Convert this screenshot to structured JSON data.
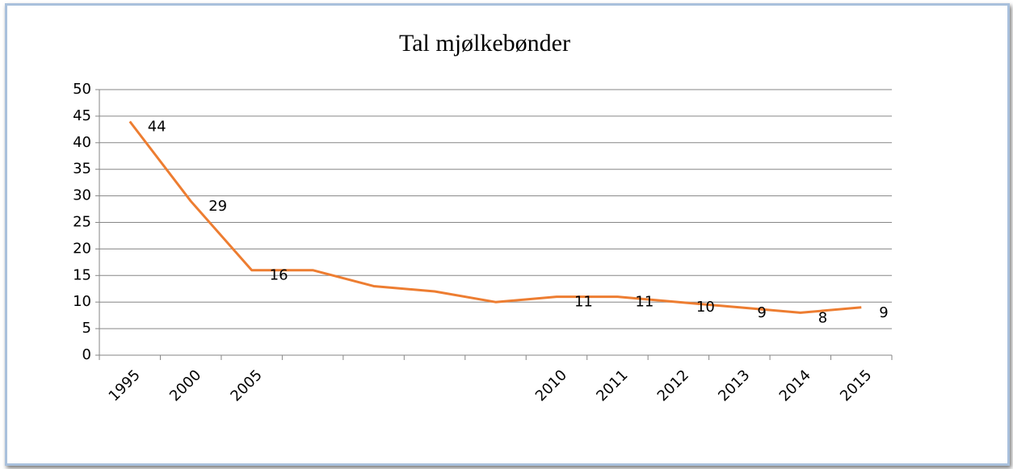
{
  "chart_data": {
    "type": "line",
    "title": "Tal mjølkebønder",
    "categories": [
      "1995",
      "2000",
      "2005",
      null,
      null,
      null,
      null,
      "2010",
      "2011",
      "2012",
      "2013",
      "2014",
      "2015"
    ],
    "series": [
      {
        "name": "Tal mjølkebønder",
        "color": "#ed7d31",
        "values": [
          44,
          29,
          16,
          16,
          13,
          12,
          10,
          11,
          11,
          10,
          9,
          8,
          9
        ],
        "value_labels": [
          "44",
          "29",
          "16",
          null,
          null,
          null,
          null,
          "11",
          "11",
          "10",
          "9",
          "8",
          "9"
        ]
      }
    ],
    "ylim": [
      0,
      50
    ],
    "yticks": [
      0,
      5,
      10,
      15,
      20,
      25,
      30,
      35,
      40,
      45,
      50
    ],
    "grid": true
  }
}
